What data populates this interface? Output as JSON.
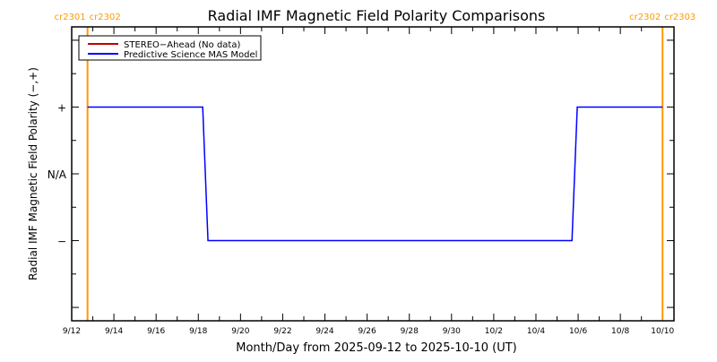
{
  "chart_data": {
    "type": "line",
    "title": "Radial IMF Magnetic Field Polarity Comparisons",
    "xlabel": "Month/Day from 2025-09-12 to 2025-10-10 (UT)",
    "ylabel": "Radial IMF Magnetic Field Polarity (−,+)",
    "xlim": [
      "2025-09-12T00:00",
      "2025-10-10T13:00"
    ],
    "ylim": [
      -2.2,
      2.2
    ],
    "x_ticks": [
      {
        "date": "2025-09-12",
        "label": "9/12"
      },
      {
        "date": "2025-09-14",
        "label": "9/14"
      },
      {
        "date": "2025-09-16",
        "label": "9/16"
      },
      {
        "date": "2025-09-18",
        "label": "9/18"
      },
      {
        "date": "2025-09-20",
        "label": "9/20"
      },
      {
        "date": "2025-09-22",
        "label": "9/22"
      },
      {
        "date": "2025-09-24",
        "label": "9/24"
      },
      {
        "date": "2025-09-26",
        "label": "9/26"
      },
      {
        "date": "2025-09-28",
        "label": "9/28"
      },
      {
        "date": "2025-09-30",
        "label": "9/30"
      },
      {
        "date": "2025-10-02",
        "label": "10/2"
      },
      {
        "date": "2025-10-04",
        "label": "10/4"
      },
      {
        "date": "2025-10-06",
        "label": "10/6"
      },
      {
        "date": "2025-10-08",
        "label": "10/8"
      },
      {
        "date": "2025-10-10",
        "label": "10/10"
      }
    ],
    "y_ticks": [
      {
        "value": 1,
        "label": "+"
      },
      {
        "value": 0,
        "label": "N/A"
      },
      {
        "value": -1,
        "label": "−"
      }
    ],
    "legend": {
      "placement": "top-left"
    },
    "series": [
      {
        "name": "STEREO−Ahead (No data)",
        "color": "#c00000",
        "points": []
      },
      {
        "name": "Predictive Science MAS Model",
        "color": "#0000ff",
        "points": [
          {
            "x": "2025-09-12T18:00",
            "y": 1
          },
          {
            "x": "2025-09-18T05:00",
            "y": 1
          },
          {
            "x": "2025-09-18T11:00",
            "y": -1
          },
          {
            "x": "2025-10-05T17:00",
            "y": -1
          },
          {
            "x": "2025-10-05T23:00",
            "y": 1
          },
          {
            "x": "2025-10-10T00:00",
            "y": 1
          }
        ]
      }
    ],
    "annotations": [
      {
        "date": "2025-09-12T18:00",
        "labels": [
          "cr2301",
          "cr2302"
        ],
        "color": "#ff9900"
      },
      {
        "date": "2025-10-10T00:00",
        "labels": [
          "cr2302",
          "cr2303"
        ],
        "color": "#ff9900"
      }
    ]
  }
}
